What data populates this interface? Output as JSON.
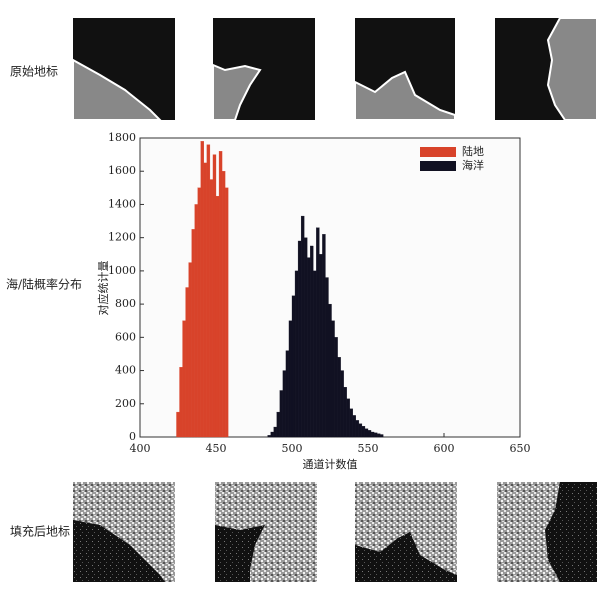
{
  "row_labels": [
    "原始地标",
    "海/陆概率分布",
    "填充后地标"
  ],
  "chart_data": {
    "type": "histogram",
    "x_label": "通道计数值",
    "y_label": "对应统计量",
    "xlim": [
      400,
      650
    ],
    "xticks": [
      400,
      450,
      500,
      550,
      600,
      650
    ],
    "ylim": [
      0,
      1800
    ],
    "yticks": [
      0,
      200,
      400,
      600,
      800,
      1000,
      1200,
      1400,
      1600,
      1800
    ],
    "legend": "upper right",
    "series": [
      {
        "name": "陆地",
        "color": "#d8432a",
        "bins": [
          424,
          426,
          428,
          430,
          432,
          434,
          436,
          438,
          440,
          442,
          444,
          446,
          448,
          450,
          452,
          454,
          456,
          458
        ],
        "values": [
          150,
          420,
          700,
          900,
          1050,
          1250,
          1400,
          1500,
          1780,
          1650,
          1760,
          1550,
          1700,
          1450,
          1720,
          1600,
          1500
        ]
      },
      {
        "name": "海洋",
        "color": "#111122",
        "bins": [
          484,
          486,
          488,
          490,
          492,
          494,
          496,
          498,
          500,
          502,
          504,
          506,
          508,
          510,
          512,
          514,
          516,
          518,
          520,
          522,
          524,
          526,
          528,
          530,
          532,
          534,
          536,
          538,
          540,
          542,
          544,
          546,
          548,
          550,
          552,
          554,
          556,
          558,
          560
        ],
        "values": [
          10,
          30,
          60,
          150,
          280,
          400,
          520,
          700,
          850,
          1000,
          1180,
          1330,
          1200,
          1080,
          1150,
          1000,
          1260,
          1100,
          1220,
          960,
          800,
          700,
          600,
          480,
          400,
          300,
          230,
          170,
          130,
          100,
          80,
          65,
          50,
          40,
          30,
          25,
          20,
          15
        ]
      }
    ]
  }
}
